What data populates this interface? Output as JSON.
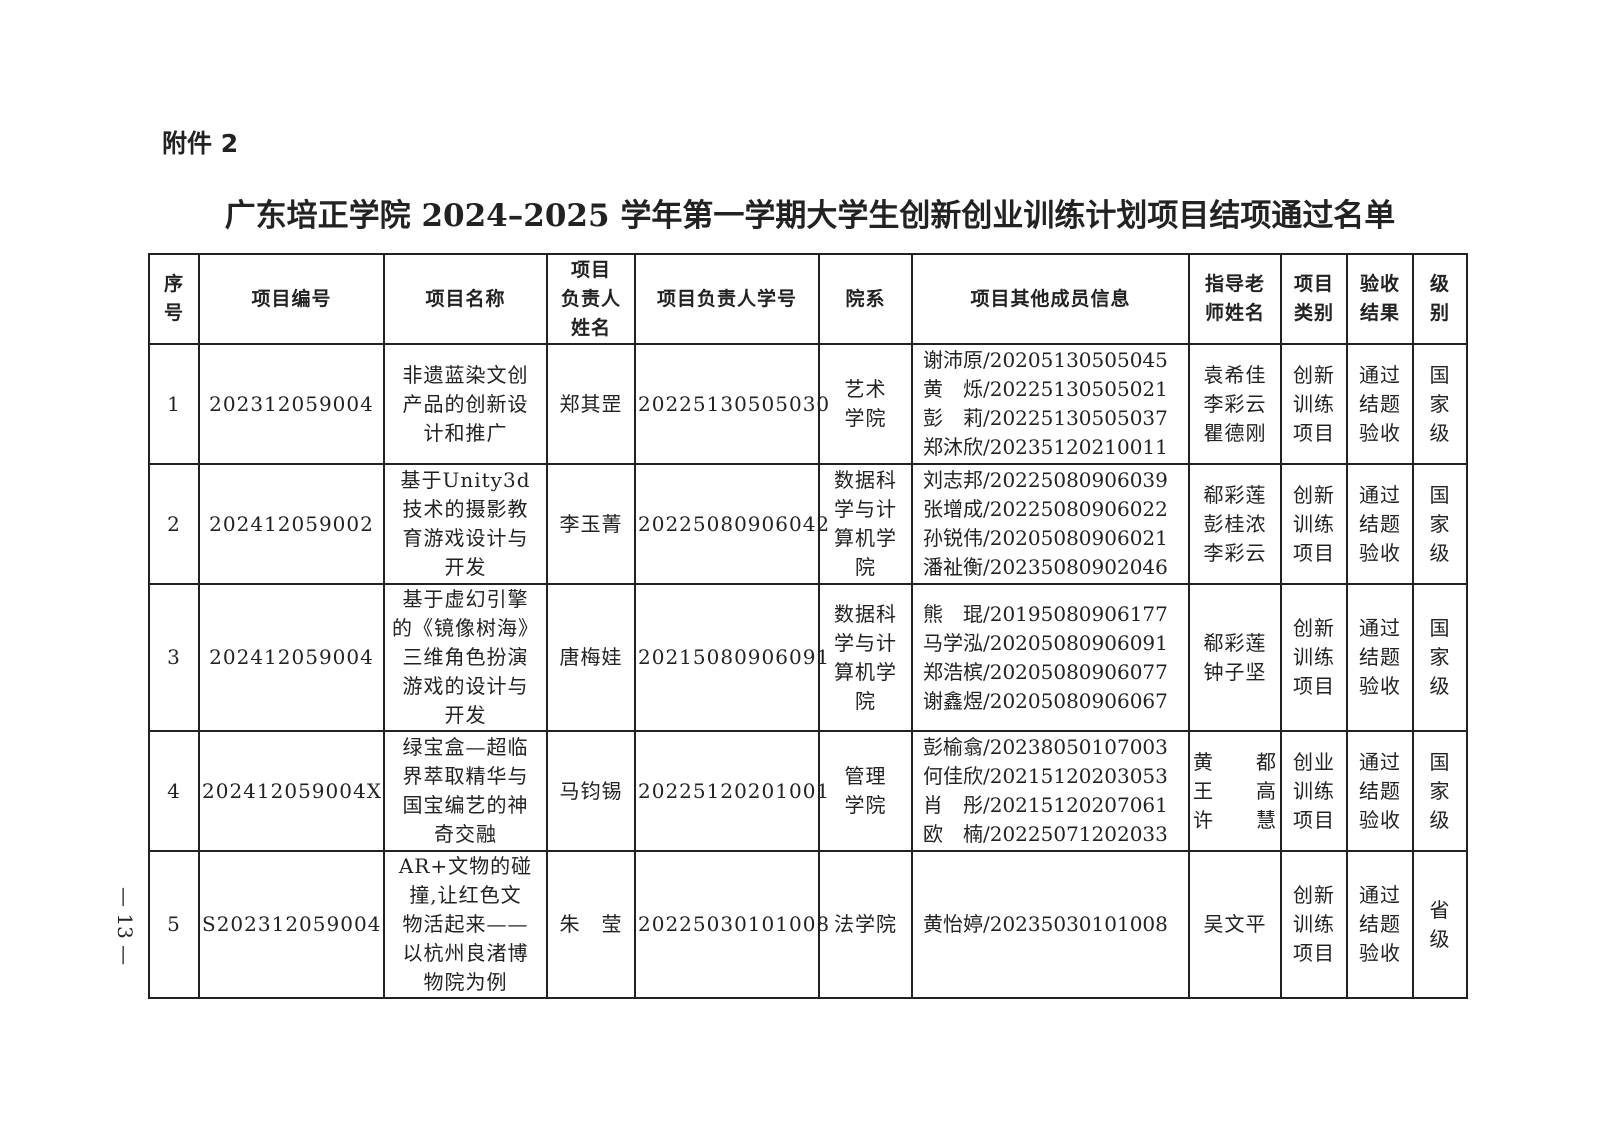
{
  "attachment_label": "附件 2",
  "title": "广东培正学院 2024–2025 学年第一学期大学生创新创业训练计划项目结项通过名单",
  "page_number": "— 13 —",
  "table": {
    "headers": [
      [
        "序",
        "号"
      ],
      [
        "项目编号"
      ],
      [
        "项目名称"
      ],
      [
        "项目",
        "负责人",
        "姓名"
      ],
      [
        "项目负责人学号"
      ],
      [
        "院系"
      ],
      [
        "项目其他成员信息"
      ],
      [
        "指导老",
        "师姓名"
      ],
      [
        "项目",
        "类别"
      ],
      [
        "验收",
        "结果"
      ],
      [
        "级",
        "别"
      ]
    ],
    "rows": [
      {
        "seq": [
          "1"
        ],
        "code": [
          "202312059004"
        ],
        "name": [
          "非遗蓝染文创",
          "产品的创新设",
          "计和推广"
        ],
        "leader": [
          "郑其罡"
        ],
        "leader_id": [
          "20225130505030"
        ],
        "dept": [
          "艺术",
          "学院"
        ],
        "members": [
          "谢沛原/20205130505045",
          "黄　烁/20225130505021",
          "彭　莉/20225130505037",
          "郑沐欣/20235120210011"
        ],
        "advisors": [
          "袁希佳",
          "李彩云",
          "瞿德刚"
        ],
        "category": [
          "创新",
          "训练",
          "项目"
        ],
        "result": [
          "通过",
          "结题",
          "验收"
        ],
        "level": [
          "国",
          "家",
          "级"
        ]
      },
      {
        "seq": [
          "2"
        ],
        "code": [
          "202412059002"
        ],
        "name": [
          "基于Unity3d",
          "技术的摄影教",
          "育游戏设计与",
          "开发"
        ],
        "leader": [
          "李玉菁"
        ],
        "leader_id": [
          "20225080906042"
        ],
        "dept": [
          "数据科",
          "学与计",
          "算机学",
          "院"
        ],
        "members": [
          "刘志邦/20225080906039",
          "张增成/20225080906022",
          "孙锐伟/20205080906021",
          "潘祉衡/20235080902046"
        ],
        "advisors": [
          "郗彩莲",
          "彭桂浓",
          "李彩云"
        ],
        "category": [
          "创新",
          "训练",
          "项目"
        ],
        "result": [
          "通过",
          "结题",
          "验收"
        ],
        "level": [
          "国",
          "家",
          "级"
        ]
      },
      {
        "seq": [
          "3"
        ],
        "code": [
          "202412059004"
        ],
        "name": [
          "基于虚幻引擎",
          "的《镜像树海》",
          "三维角色扮演",
          "游戏的设计与",
          "开发"
        ],
        "leader": [
          "唐梅娃"
        ],
        "leader_id": [
          "20215080906091"
        ],
        "dept": [
          "数据科",
          "学与计",
          "算机学",
          "院"
        ],
        "members": [
          "熊　琨/20195080906177",
          "马学泓/20205080906091",
          "郑浩槟/20205080906077",
          "谢鑫煜/20205080906067"
        ],
        "advisors": [
          "郗彩莲",
          "钟子坚"
        ],
        "category": [
          "创新",
          "训练",
          "项目"
        ],
        "result": [
          "通过",
          "结题",
          "验收"
        ],
        "level": [
          "国",
          "家",
          "级"
        ]
      },
      {
        "seq": [
          "4"
        ],
        "code": [
          "202412059004X"
        ],
        "name": [
          "绿宝盒—超临",
          "界萃取精华与",
          "国宝编艺的神",
          "奇交融"
        ],
        "leader": [
          "马钧锡"
        ],
        "leader_id": [
          "20225120201001"
        ],
        "dept": [
          "管理",
          "学院"
        ],
        "members": [
          "彭榆翕/20238050107003",
          "何佳欣/20215120203053",
          "肖　彤/20215120207061",
          "欧　楠/20225071202033"
        ],
        "advisors": [
          "黄　　都",
          "王　　高",
          "许　　慧"
        ],
        "category": [
          "创业",
          "训练",
          "项目"
        ],
        "result": [
          "通过",
          "结题",
          "验收"
        ],
        "level": [
          "国",
          "家",
          "级"
        ]
      },
      {
        "seq": [
          "5"
        ],
        "code": [
          "S202312059004"
        ],
        "name": [
          "AR+文物的碰",
          "撞,让红色文",
          "物活起来——",
          "以杭州良渚博",
          "物院为例"
        ],
        "leader": [
          "朱　莹"
        ],
        "leader_id": [
          "20225030101008"
        ],
        "dept": [
          "法学院"
        ],
        "members": [
          "黄怡婷/20235030101008"
        ],
        "advisors": [
          "吴文平"
        ],
        "category": [
          "创新",
          "训练",
          "项目"
        ],
        "result": [
          "通过",
          "结题",
          "验收"
        ],
        "level": [
          "省",
          "级"
        ]
      }
    ]
  }
}
